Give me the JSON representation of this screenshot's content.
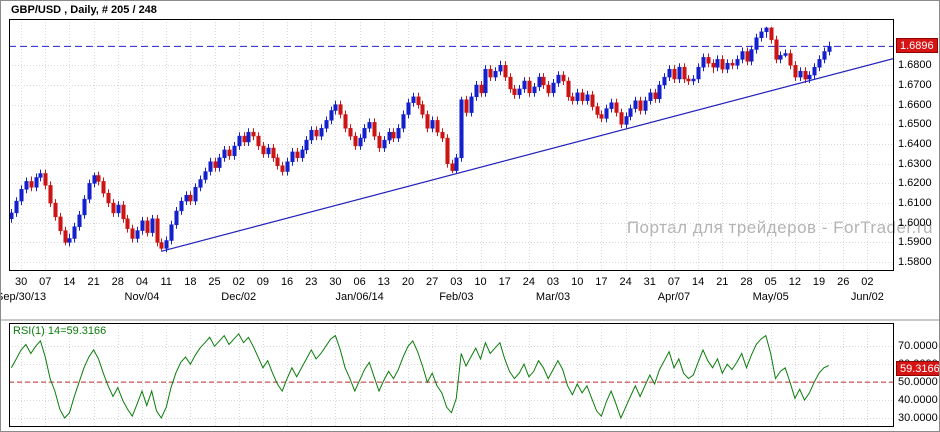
{
  "window": {
    "title": "GBP/USD , Daily, # 205 / 248"
  },
  "watermark": "Портал для трейдеров - ForTrader.ru",
  "colors": {
    "bull": "#1420cc",
    "bear": "#cc1414",
    "trend": "#2020bb",
    "current_price_line": "#2020cc",
    "rsi": "#0b7d0b",
    "rsi_level": "#c03030",
    "badge_bg": "#d61414",
    "badge_text": "#ffffff",
    "grid": "#d9d9d9",
    "pane_border": "#000000"
  },
  "price_axis": {
    "ticks": [
      "1.6800",
      "1.6700",
      "1.6600",
      "1.6500",
      "1.6400",
      "1.6300",
      "1.6200",
      "1.6100",
      "1.6000",
      "1.5900",
      "1.5800"
    ],
    "current": "1.6896",
    "min": 1.5755,
    "max": 1.7035
  },
  "time_axis": {
    "weeks": [
      "30",
      "07",
      "14",
      "21",
      "28",
      "04",
      "11",
      "18",
      "25",
      "02",
      "09",
      "16",
      "23",
      "30",
      "06",
      "13",
      "20",
      "27",
      "03",
      "10",
      "17",
      "24",
      "03",
      "10",
      "17",
      "24",
      "31",
      "07",
      "14",
      "21",
      "28",
      "05",
      "12",
      "19",
      "26",
      "02"
    ],
    "months": [
      {
        "label": "Sep/30/13",
        "week": 0
      },
      {
        "label": "Nov/04",
        "week": 5
      },
      {
        "label": "Dec/02",
        "week": 9
      },
      {
        "label": "Jan/06/14",
        "week": 14
      },
      {
        "label": "Feb/03",
        "week": 18
      },
      {
        "label": "Mar/03",
        "week": 22
      },
      {
        "label": "Apr/07",
        "week": 27
      },
      {
        "label": "May/05",
        "week": 31
      },
      {
        "label": "Jun/02",
        "week": 35
      }
    ]
  },
  "chart_data": [
    {
      "type": "candlestick",
      "title": "GBP/USD , Daily, # 205 / 248",
      "symbol": "GBP/USD",
      "timeframe": "Daily",
      "bars_label": "# 205 / 248",
      "ylim": [
        1.5755,
        1.7035
      ],
      "grid": true,
      "candles": [
        [
          1.602,
          1.607,
          1.6,
          1.605
        ],
        [
          1.605,
          1.613,
          1.603,
          1.611
        ],
        [
          1.611,
          1.619,
          1.609,
          1.617
        ],
        [
          1.617,
          1.623,
          1.615,
          1.621
        ],
        [
          1.621,
          1.6235,
          1.616,
          1.618
        ],
        [
          1.618,
          1.625,
          1.616,
          1.623
        ],
        [
          1.623,
          1.627,
          1.621,
          1.625
        ],
        [
          1.625,
          1.627,
          1.617,
          1.619
        ],
        [
          1.619,
          1.621,
          1.608,
          1.61
        ],
        [
          1.61,
          1.612,
          1.601,
          1.603
        ],
        [
          1.603,
          1.605,
          1.594,
          1.596
        ],
        [
          1.596,
          1.598,
          1.5885,
          1.59
        ],
        [
          1.59,
          1.5945,
          1.588,
          1.592
        ],
        [
          1.592,
          1.6,
          1.59,
          1.598
        ],
        [
          1.598,
          1.606,
          1.596,
          1.604
        ],
        [
          1.604,
          1.614,
          1.602,
          1.612
        ],
        [
          1.612,
          1.622,
          1.61,
          1.62
        ],
        [
          1.62,
          1.6255,
          1.618,
          1.624
        ],
        [
          1.624,
          1.626,
          1.619,
          1.621
        ],
        [
          1.621,
          1.623,
          1.613,
          1.615
        ],
        [
          1.615,
          1.617,
          1.608,
          1.61
        ],
        [
          1.61,
          1.612,
          1.603,
          1.605
        ],
        [
          1.605,
          1.611,
          1.603,
          1.609
        ],
        [
          1.609,
          1.611,
          1.6,
          1.602
        ],
        [
          1.602,
          1.604,
          1.595,
          1.597
        ],
        [
          1.597,
          1.599,
          1.59,
          1.592
        ],
        [
          1.592,
          1.598,
          1.59,
          1.596
        ],
        [
          1.596,
          1.603,
          1.594,
          1.601
        ],
        [
          1.601,
          1.603,
          1.593,
          1.595
        ],
        [
          1.595,
          1.604,
          1.593,
          1.602
        ],
        [
          1.602,
          1.604,
          1.588,
          1.59
        ],
        [
          1.59,
          1.592,
          1.5855,
          1.587
        ],
        [
          1.587,
          1.593,
          1.585,
          1.591
        ],
        [
          1.591,
          1.601,
          1.589,
          1.599
        ],
        [
          1.599,
          1.608,
          1.597,
          1.606
        ],
        [
          1.606,
          1.613,
          1.604,
          1.611
        ],
        [
          1.611,
          1.616,
          1.609,
          1.614
        ],
        [
          1.614,
          1.616,
          1.609,
          1.611
        ],
        [
          1.611,
          1.62,
          1.609,
          1.618
        ],
        [
          1.618,
          1.624,
          1.616,
          1.622
        ],
        [
          1.622,
          1.628,
          1.62,
          1.626
        ],
        [
          1.626,
          1.633,
          1.624,
          1.631
        ],
        [
          1.631,
          1.633,
          1.626,
          1.628
        ],
        [
          1.628,
          1.635,
          1.626,
          1.633
        ],
        [
          1.633,
          1.639,
          1.631,
          1.637
        ],
        [
          1.637,
          1.639,
          1.632,
          1.634
        ],
        [
          1.634,
          1.641,
          1.632,
          1.639
        ],
        [
          1.639,
          1.646,
          1.637,
          1.644
        ],
        [
          1.644,
          1.646,
          1.639,
          1.641
        ],
        [
          1.641,
          1.648,
          1.639,
          1.646
        ],
        [
          1.646,
          1.648,
          1.642,
          1.644
        ],
        [
          1.644,
          1.646,
          1.637,
          1.639
        ],
        [
          1.639,
          1.641,
          1.633,
          1.635
        ],
        [
          1.635,
          1.64,
          1.633,
          1.638
        ],
        [
          1.638,
          1.64,
          1.631,
          1.633
        ],
        [
          1.633,
          1.635,
          1.627,
          1.629
        ],
        [
          1.629,
          1.631,
          1.624,
          1.626
        ],
        [
          1.626,
          1.633,
          1.624,
          1.631
        ],
        [
          1.631,
          1.638,
          1.629,
          1.636
        ],
        [
          1.636,
          1.638,
          1.631,
          1.633
        ],
        [
          1.633,
          1.639,
          1.631,
          1.637
        ],
        [
          1.637,
          1.644,
          1.635,
          1.642
        ],
        [
          1.642,
          1.649,
          1.64,
          1.647
        ],
        [
          1.647,
          1.649,
          1.642,
          1.644
        ],
        [
          1.644,
          1.65,
          1.642,
          1.648
        ],
        [
          1.648,
          1.654,
          1.646,
          1.652
        ],
        [
          1.652,
          1.659,
          1.65,
          1.657
        ],
        [
          1.657,
          1.662,
          1.655,
          1.66
        ],
        [
          1.66,
          1.662,
          1.653,
          1.655
        ],
        [
          1.655,
          1.657,
          1.646,
          1.648
        ],
        [
          1.648,
          1.65,
          1.642,
          1.644
        ],
        [
          1.644,
          1.646,
          1.637,
          1.639
        ],
        [
          1.639,
          1.645,
          1.637,
          1.643
        ],
        [
          1.643,
          1.65,
          1.641,
          1.648
        ],
        [
          1.648,
          1.653,
          1.646,
          1.651
        ],
        [
          1.651,
          1.653,
          1.642,
          1.644
        ],
        [
          1.644,
          1.646,
          1.636,
          1.638
        ],
        [
          1.638,
          1.644,
          1.636,
          1.642
        ],
        [
          1.642,
          1.648,
          1.64,
          1.646
        ],
        [
          1.646,
          1.648,
          1.641,
          1.643
        ],
        [
          1.643,
          1.65,
          1.641,
          1.648
        ],
        [
          1.648,
          1.657,
          1.646,
          1.655
        ],
        [
          1.655,
          1.663,
          1.653,
          1.661
        ],
        [
          1.661,
          1.666,
          1.659,
          1.664
        ],
        [
          1.664,
          1.666,
          1.658,
          1.66
        ],
        [
          1.66,
          1.662,
          1.653,
          1.655
        ],
        [
          1.655,
          1.657,
          1.646,
          1.648
        ],
        [
          1.648,
          1.654,
          1.646,
          1.652
        ],
        [
          1.652,
          1.654,
          1.644,
          1.646
        ],
        [
          1.646,
          1.648,
          1.641,
          1.643
        ],
        [
          1.643,
          1.645,
          1.628,
          1.63
        ],
        [
          1.63,
          1.632,
          1.6252,
          1.6265
        ],
        [
          1.6265,
          1.635,
          1.625,
          1.633
        ],
        [
          1.633,
          1.664,
          1.631,
          1.6625
        ],
        [
          1.6625,
          1.6645,
          1.654,
          1.656
        ],
        [
          1.656,
          1.666,
          1.654,
          1.664
        ],
        [
          1.664,
          1.672,
          1.662,
          1.67
        ],
        [
          1.67,
          1.672,
          1.664,
          1.666
        ],
        [
          1.666,
          1.68,
          1.664,
          1.678
        ],
        [
          1.678,
          1.68,
          1.672,
          1.674
        ],
        [
          1.674,
          1.679,
          1.672,
          1.677
        ],
        [
          1.677,
          1.6823,
          1.675,
          1.68
        ],
        [
          1.68,
          1.682,
          1.672,
          1.674
        ],
        [
          1.674,
          1.676,
          1.666,
          1.668
        ],
        [
          1.668,
          1.67,
          1.663,
          1.665
        ],
        [
          1.665,
          1.67,
          1.663,
          1.668
        ],
        [
          1.668,
          1.674,
          1.666,
          1.672
        ],
        [
          1.672,
          1.674,
          1.664,
          1.666
        ],
        [
          1.666,
          1.671,
          1.664,
          1.669
        ],
        [
          1.669,
          1.676,
          1.667,
          1.674
        ],
        [
          1.674,
          1.676,
          1.668,
          1.67
        ],
        [
          1.67,
          1.672,
          1.664,
          1.666
        ],
        [
          1.666,
          1.673,
          1.664,
          1.671
        ],
        [
          1.671,
          1.677,
          1.669,
          1.675
        ],
        [
          1.675,
          1.677,
          1.67,
          1.672
        ],
        [
          1.672,
          1.674,
          1.662,
          1.664
        ],
        [
          1.664,
          1.666,
          1.66,
          1.662
        ],
        [
          1.662,
          1.668,
          1.66,
          1.666
        ],
        [
          1.666,
          1.668,
          1.66,
          1.662
        ],
        [
          1.662,
          1.667,
          1.66,
          1.665
        ],
        [
          1.665,
          1.667,
          1.657,
          1.659
        ],
        [
          1.659,
          1.661,
          1.653,
          1.655
        ],
        [
          1.655,
          1.657,
          1.651,
          1.653
        ],
        [
          1.653,
          1.66,
          1.651,
          1.658
        ],
        [
          1.658,
          1.663,
          1.656,
          1.661
        ],
        [
          1.661,
          1.663,
          1.654,
          1.656
        ],
        [
          1.656,
          1.658,
          1.648,
          1.65
        ],
        [
          1.65,
          1.656,
          1.648,
          1.654
        ],
        [
          1.654,
          1.66,
          1.652,
          1.658
        ],
        [
          1.658,
          1.664,
          1.656,
          1.662
        ],
        [
          1.662,
          1.664,
          1.655,
          1.657
        ],
        [
          1.657,
          1.664,
          1.655,
          1.662
        ],
        [
          1.662,
          1.668,
          1.66,
          1.666
        ],
        [
          1.666,
          1.668,
          1.661,
          1.663
        ],
        [
          1.663,
          1.672,
          1.661,
          1.67
        ],
        [
          1.67,
          1.676,
          1.668,
          1.674
        ],
        [
          1.674,
          1.68,
          1.672,
          1.678
        ],
        [
          1.678,
          1.68,
          1.671,
          1.673
        ],
        [
          1.673,
          1.681,
          1.671,
          1.679
        ],
        [
          1.679,
          1.681,
          1.671,
          1.673
        ],
        [
          1.673,
          1.675,
          1.67,
          1.672
        ],
        [
          1.672,
          1.675,
          1.67,
          1.673
        ],
        [
          1.673,
          1.681,
          1.671,
          1.679
        ],
        [
          1.679,
          1.686,
          1.677,
          1.684
        ],
        [
          1.684,
          1.686,
          1.679,
          1.681
        ],
        [
          1.681,
          1.683,
          1.676,
          1.679
        ],
        [
          1.679,
          1.685,
          1.677,
          1.683
        ],
        [
          1.683,
          1.685,
          1.676,
          1.678
        ],
        [
          1.678,
          1.683,
          1.676,
          1.681
        ],
        [
          1.681,
          1.683,
          1.678,
          1.68
        ],
        [
          1.68,
          1.685,
          1.678,
          1.683
        ],
        [
          1.683,
          1.689,
          1.681,
          1.687
        ],
        [
          1.687,
          1.689,
          1.68,
          1.682
        ],
        [
          1.682,
          1.69,
          1.68,
          1.688
        ],
        [
          1.688,
          1.696,
          1.686,
          1.694
        ],
        [
          1.694,
          1.699,
          1.692,
          1.697
        ],
        [
          1.697,
          1.6996,
          1.694,
          1.699
        ],
        [
          1.699,
          1.6995,
          1.691,
          1.693
        ],
        [
          1.693,
          1.695,
          1.681,
          1.683
        ],
        [
          1.683,
          1.687,
          1.681,
          1.685
        ],
        [
          1.685,
          1.688,
          1.684,
          1.686
        ],
        [
          1.686,
          1.688,
          1.678,
          1.68
        ],
        [
          1.68,
          1.682,
          1.672,
          1.674
        ],
        [
          1.674,
          1.679,
          1.672,
          1.677
        ],
        [
          1.677,
          1.679,
          1.671,
          1.673
        ],
        [
          1.673,
          1.677,
          1.671,
          1.675
        ],
        [
          1.675,
          1.681,
          1.673,
          1.679
        ],
        [
          1.679,
          1.685,
          1.677,
          1.683
        ],
        [
          1.683,
          1.689,
          1.681,
          1.687
        ],
        [
          1.687,
          1.692,
          1.685,
          1.6896
        ]
      ],
      "overlays": [
        {
          "type": "hline",
          "style": "dashed",
          "value": 1.6896
        },
        {
          "type": "trendline",
          "x1_bar": 31,
          "y1_price": 1.5855,
          "x2_bar": 182.5,
          "y2_price": 1.6835
        }
      ]
    },
    {
      "type": "line",
      "name": "RSI",
      "label": "RSI(1) 14=59.3166",
      "current": "59.3166",
      "range": [
        25,
        83
      ],
      "ticks": [
        "70.0000",
        "60.0000",
        "50.0000",
        "40.0000",
        "30.0000"
      ],
      "levels": [
        {
          "value": 50,
          "style": "dashed"
        }
      ],
      "values": [
        58,
        63,
        68,
        71,
        66,
        70,
        73,
        64,
        52,
        45,
        35,
        30,
        33,
        42,
        50,
        58,
        64,
        68,
        63,
        55,
        48,
        42,
        47,
        40,
        35,
        31,
        38,
        45,
        37,
        45,
        34,
        30,
        36,
        47,
        55,
        61,
        64,
        60,
        65,
        69,
        72,
        75,
        70,
        73,
        76,
        71,
        74,
        77,
        72,
        75,
        70,
        64,
        58,
        62,
        55,
        49,
        45,
        52,
        58,
        53,
        58,
        63,
        68,
        63,
        66,
        70,
        74,
        76,
        68,
        58,
        52,
        45,
        51,
        57,
        61,
        53,
        45,
        51,
        56,
        52,
        57,
        64,
        70,
        73,
        67,
        59,
        50,
        55,
        48,
        44,
        36,
        33,
        41,
        66,
        59,
        64,
        69,
        63,
        72,
        66,
        69,
        72,
        63,
        56,
        52,
        55,
        60,
        53,
        56,
        62,
        58,
        52,
        57,
        62,
        57,
        48,
        43,
        49,
        44,
        48,
        41,
        34,
        31,
        39,
        45,
        38,
        30,
        36,
        42,
        48,
        42,
        48,
        54,
        49,
        57,
        62,
        67,
        58,
        63,
        55,
        52,
        54,
        61,
        68,
        62,
        58,
        63,
        55,
        60,
        57,
        61,
        66,
        58,
        65,
        71,
        74,
        76,
        66,
        52,
        56,
        58,
        50,
        41,
        46,
        40,
        44,
        50,
        55,
        58,
        59.32
      ]
    }
  ]
}
